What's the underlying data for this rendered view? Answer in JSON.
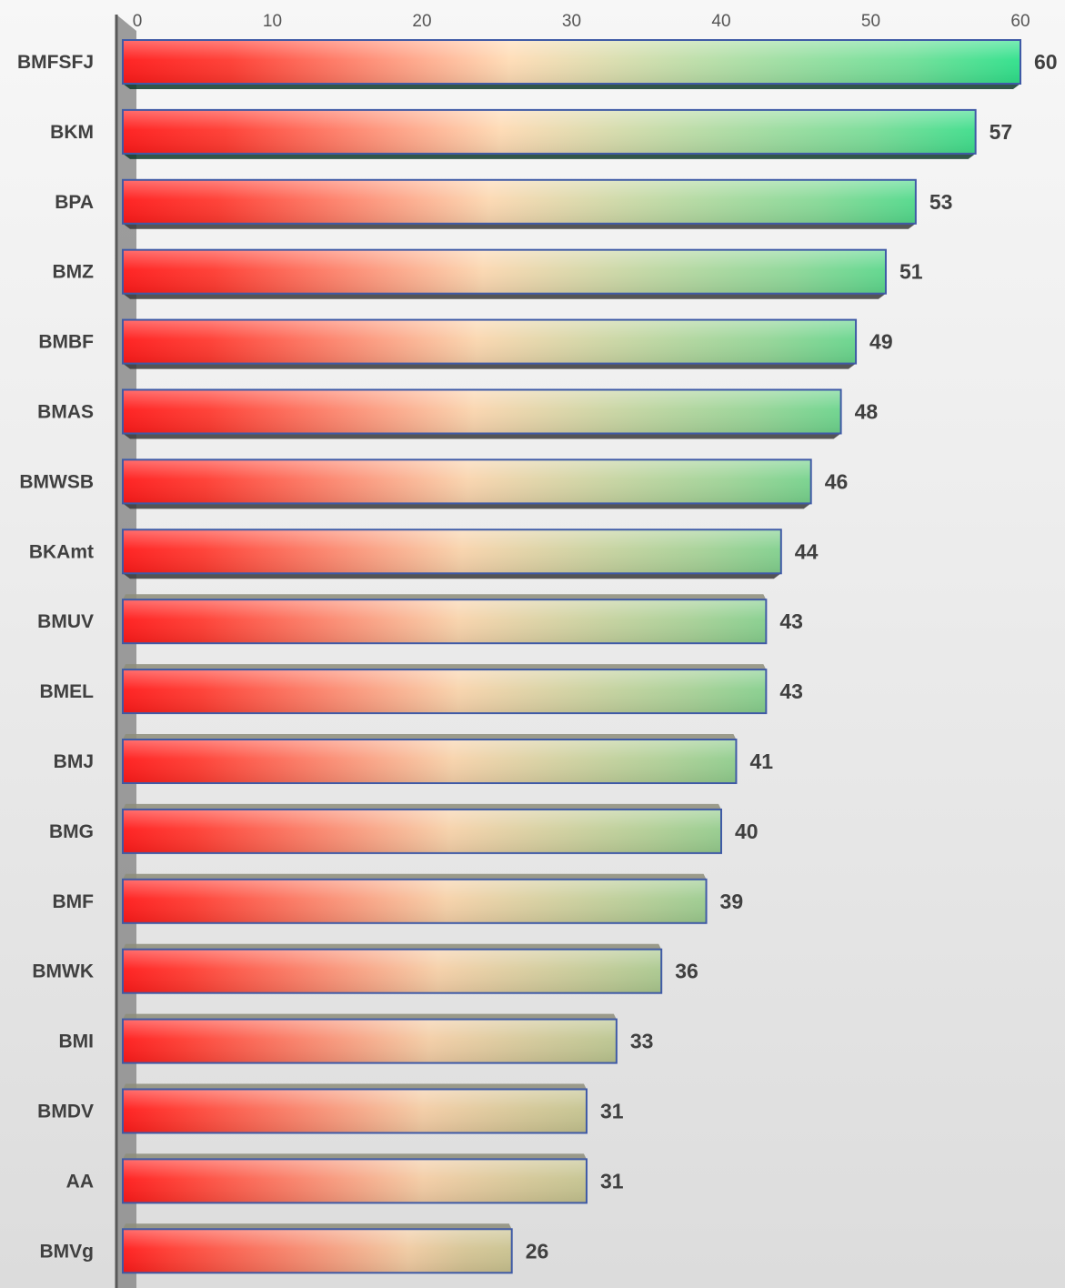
{
  "chart_data": {
    "type": "bar",
    "orientation": "horizontal",
    "title": "",
    "xlabel": "",
    "ylabel": "",
    "xlim": [
      0,
      61.5
    ],
    "ticks": [
      0,
      10,
      20,
      30,
      40,
      50,
      60
    ],
    "tick_labels": [
      "0",
      "10",
      "20",
      "30",
      "40",
      "50",
      "60"
    ],
    "categories": [
      "BMFSFJ",
      "BKM",
      "BPA",
      "BMZ",
      "BMBF",
      "BMAS",
      "BMWSB",
      "BKAmt",
      "BMUV",
      "BMEL",
      "BMJ",
      "BMG",
      "BMF",
      "BMWK",
      "BMI",
      "BMDV",
      "AA",
      "BMVg"
    ],
    "values": [
      60,
      57,
      53,
      51,
      49,
      48,
      46,
      44,
      43,
      43,
      41,
      40,
      39,
      36,
      33,
      31,
      31,
      26
    ],
    "data_labels": [
      "60",
      "57",
      "53",
      "51",
      "49",
      "48",
      "46",
      "44",
      "43",
      "43",
      "41",
      "40",
      "39",
      "36",
      "33",
      "31",
      "31",
      "26"
    ],
    "grid": false,
    "legend": "none",
    "colors": {
      "low": "#ff1a1a",
      "mid": "#ffdcb5",
      "high": "#2ee08a",
      "bar_border": "#3f5aa6",
      "axis": "#595959",
      "axis_wall": "#8c8c8c"
    }
  }
}
